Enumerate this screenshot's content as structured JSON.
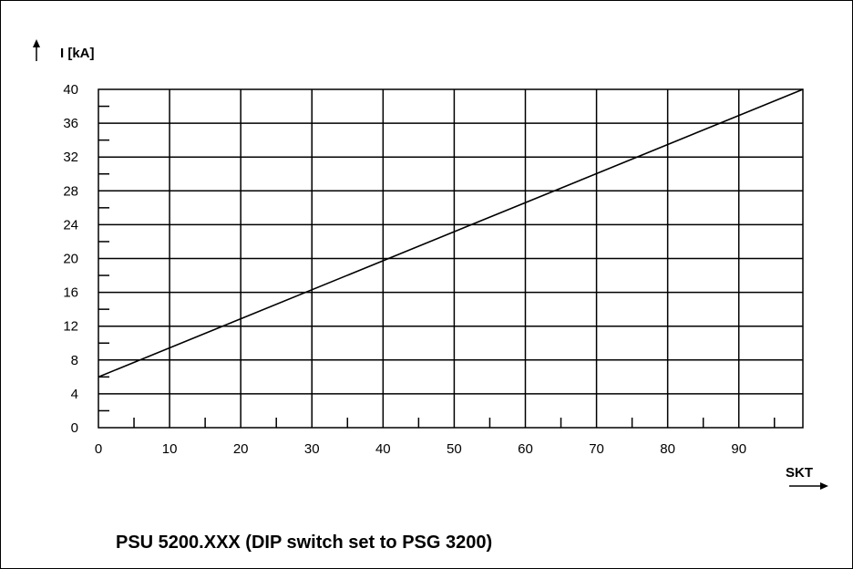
{
  "caption": "PSU 5200.XXX (DIP switch set to PSG 3200)",
  "chart_data": {
    "type": "line",
    "ylabel": "I [kA]",
    "xlabel": "SKT",
    "xlim": [
      0,
      99
    ],
    "ylim": [
      0,
      40
    ],
    "x_ticks": [
      0,
      10,
      20,
      30,
      40,
      50,
      60,
      70,
      80,
      90
    ],
    "y_ticks": [
      0,
      4,
      8,
      12,
      16,
      20,
      24,
      28,
      32,
      36,
      40
    ],
    "grid": true,
    "series": [
      {
        "x": [
          0,
          99
        ],
        "y": [
          6,
          40
        ]
      }
    ]
  }
}
